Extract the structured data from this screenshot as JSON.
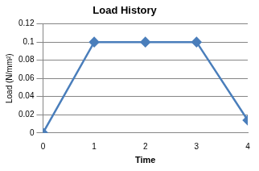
{
  "chart_data": {
    "type": "line",
    "title": "Load History",
    "x_label": "Time",
    "y_label": "Load (N/mm²)",
    "x": [
      0,
      1,
      2,
      3,
      4
    ],
    "values": [
      0,
      0.1,
      0.1,
      0.1,
      0.014
    ],
    "color": "#4a7ebb",
    "marker": "diamond",
    "xlim": [
      0,
      4
    ],
    "xticks": [
      0,
      1,
      2,
      3,
      4
    ],
    "ylim": [
      0,
      0.12
    ],
    "yticks": [
      0,
      0.02,
      0.04,
      0.06,
      0.08,
      0.1,
      0.12
    ],
    "grid": true
  }
}
